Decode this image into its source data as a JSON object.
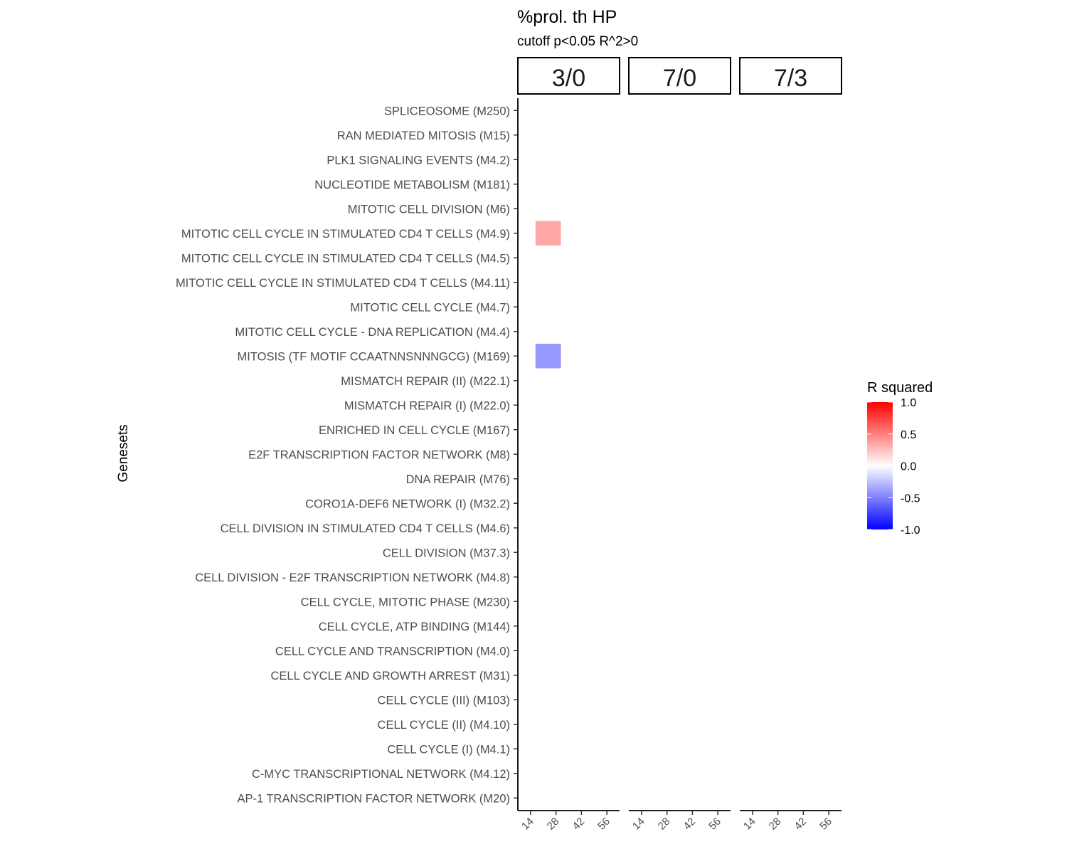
{
  "chart_data": {
    "type": "heatmap",
    "title": "%prol. th HP",
    "subtitle": "cutoff p<0.05 R^2>0",
    "ylabel": "Genesets",
    "xlabel": "",
    "facets": [
      "3/0",
      "7/0",
      "7/3"
    ],
    "x_ticks": [
      "14",
      "28",
      "42",
      "56"
    ],
    "xlim": [
      7,
      63
    ],
    "genesets": [
      "SPLICEOSOME (M250)",
      "RAN MEDIATED MITOSIS (M15)",
      "PLK1 SIGNALING EVENTS (M4.2)",
      "NUCLEOTIDE METABOLISM (M181)",
      "MITOTIC CELL DIVISION (M6)",
      "MITOTIC CELL CYCLE IN STIMULATED CD4 T CELLS (M4.9)",
      "MITOTIC CELL CYCLE IN STIMULATED CD4 T CELLS (M4.5)",
      "MITOTIC CELL CYCLE IN STIMULATED CD4 T CELLS (M4.11)",
      "MITOTIC CELL CYCLE (M4.7)",
      "MITOTIC CELL CYCLE - DNA REPLICATION (M4.4)",
      "MITOSIS (TF MOTIF CCAATNNSNNNGCG) (M169)",
      "MISMATCH REPAIR (II) (M22.1)",
      "MISMATCH REPAIR (I) (M22.0)",
      "ENRICHED IN CELL CYCLE (M167)",
      "E2F TRANSCRIPTION FACTOR NETWORK (M8)",
      "DNA REPAIR (M76)",
      "CORO1A-DEF6 NETWORK (I) (M32.2)",
      "CELL DIVISION IN STIMULATED CD4 T CELLS (M4.6)",
      "CELL DIVISION (M37.3)",
      "CELL DIVISION - E2F TRANSCRIPTION NETWORK (M4.8)",
      "CELL CYCLE, MITOTIC PHASE (M230)",
      "CELL CYCLE, ATP BINDING (M144)",
      "CELL CYCLE AND TRANSCRIPTION (M4.0)",
      "CELL CYCLE AND GROWTH ARREST (M31)",
      "CELL CYCLE (III) (M103)",
      "CELL CYCLE (II) (M4.10)",
      "CELL CYCLE (I) (M4.1)",
      "C-MYC TRANSCRIPTIONAL NETWORK (M4.12)",
      "AP-1 TRANSCRIPTION FACTOR NETWORK (M20)"
    ],
    "cells": [
      {
        "facet": "3/0",
        "x": 28,
        "geneset": "MITOTIC CELL CYCLE IN STIMULATED CD4 T CELLS (M4.9)",
        "r_squared": 0.35
      },
      {
        "facet": "3/0",
        "x": 28,
        "geneset": "MITOSIS (TF MOTIF CCAATNNSNNNGCG) (M169)",
        "r_squared": -0.4
      }
    ],
    "legend": {
      "title": "R squared",
      "ticks": [
        "1.0",
        "0.5",
        "0.0",
        "-0.5",
        "-1.0"
      ],
      "range": [
        -1,
        1
      ],
      "colors": {
        "low": "#0000FF",
        "mid": "#FFFFFF",
        "high": "#FF0000"
      },
      "placement": "right"
    },
    "grid": false
  }
}
